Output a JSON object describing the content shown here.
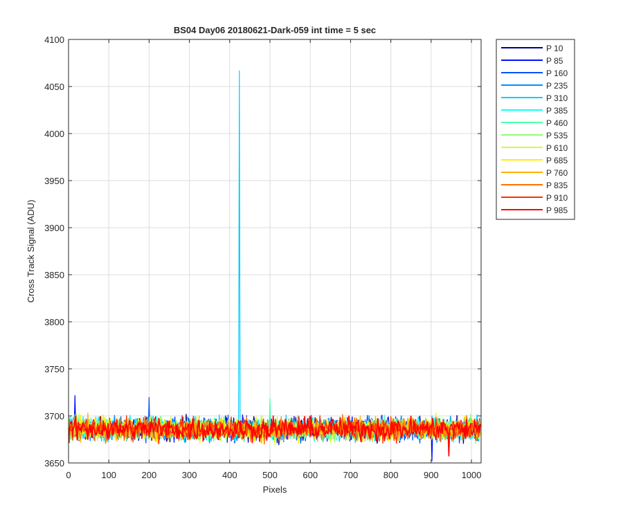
{
  "chart_data": {
    "type": "line",
    "title": "BS04 Day06 20180621-Dark-059 int time = 5 sec",
    "xlabel": "Pixels",
    "ylabel": "Cross Track Signal (ADU)",
    "xlim": [
      0,
      1024
    ],
    "ylim": [
      3650,
      4100
    ],
    "xticks": [
      0,
      100,
      200,
      300,
      400,
      500,
      600,
      700,
      800,
      900,
      1000
    ],
    "yticks": [
      3650,
      3700,
      3750,
      3800,
      3850,
      3900,
      3950,
      4000,
      4050,
      4100
    ],
    "grid": true,
    "legend_position": "outside-top-right",
    "baseline": {
      "mean": 3686,
      "noise_amplitude": 12
    },
    "series": [
      {
        "name": "P 10",
        "color": "#00008f",
        "spikes": []
      },
      {
        "name": "P 85",
        "color": "#0010ff",
        "spikes": [
          [
            16,
            3722
          ],
          [
            902,
            3652
          ]
        ]
      },
      {
        "name": "P 160",
        "color": "#0050ff",
        "spikes": [
          [
            200,
            3720
          ]
        ]
      },
      {
        "name": "P 235",
        "color": "#008fff",
        "spikes": []
      },
      {
        "name": "P 310",
        "color": "#00cfff",
        "spikes": [
          [
            424,
            4067
          ],
          [
            425,
            4067
          ]
        ]
      },
      {
        "name": "P 385",
        "color": "#10ffef",
        "spikes": []
      },
      {
        "name": "P 460",
        "color": "#50ffaf",
        "spikes": [
          [
            500,
            3719
          ]
        ]
      },
      {
        "name": "P 535",
        "color": "#8fff70",
        "spikes": []
      },
      {
        "name": "P 610",
        "color": "#cfff30",
        "spikes": []
      },
      {
        "name": "P 685",
        "color": "#ffef00",
        "spikes": []
      },
      {
        "name": "P 760",
        "color": "#ffaf00",
        "spikes": []
      },
      {
        "name": "P 835",
        "color": "#ff7000",
        "spikes": []
      },
      {
        "name": "P 910",
        "color": "#ff3000",
        "spikes": []
      },
      {
        "name": "P 985",
        "color": "#ff0000",
        "spikes": [
          [
            945,
            3657
          ]
        ]
      }
    ]
  }
}
